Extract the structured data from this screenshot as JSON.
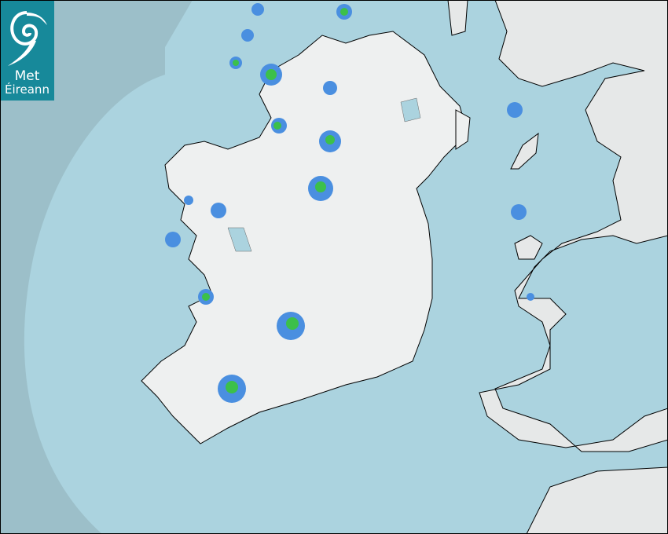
{
  "logo": {
    "line1": "Met",
    "line2": "Éireann"
  },
  "map": {
    "type": "rainfall-radar",
    "colors": {
      "outside_coverage": "#9cbfc9",
      "radar_coverage": "#abd3df",
      "land": "#eef0f0",
      "rain_light": "#4a8fe0",
      "rain_moderate": "#3cc04a",
      "logo_bg": "#17899a"
    }
  }
}
